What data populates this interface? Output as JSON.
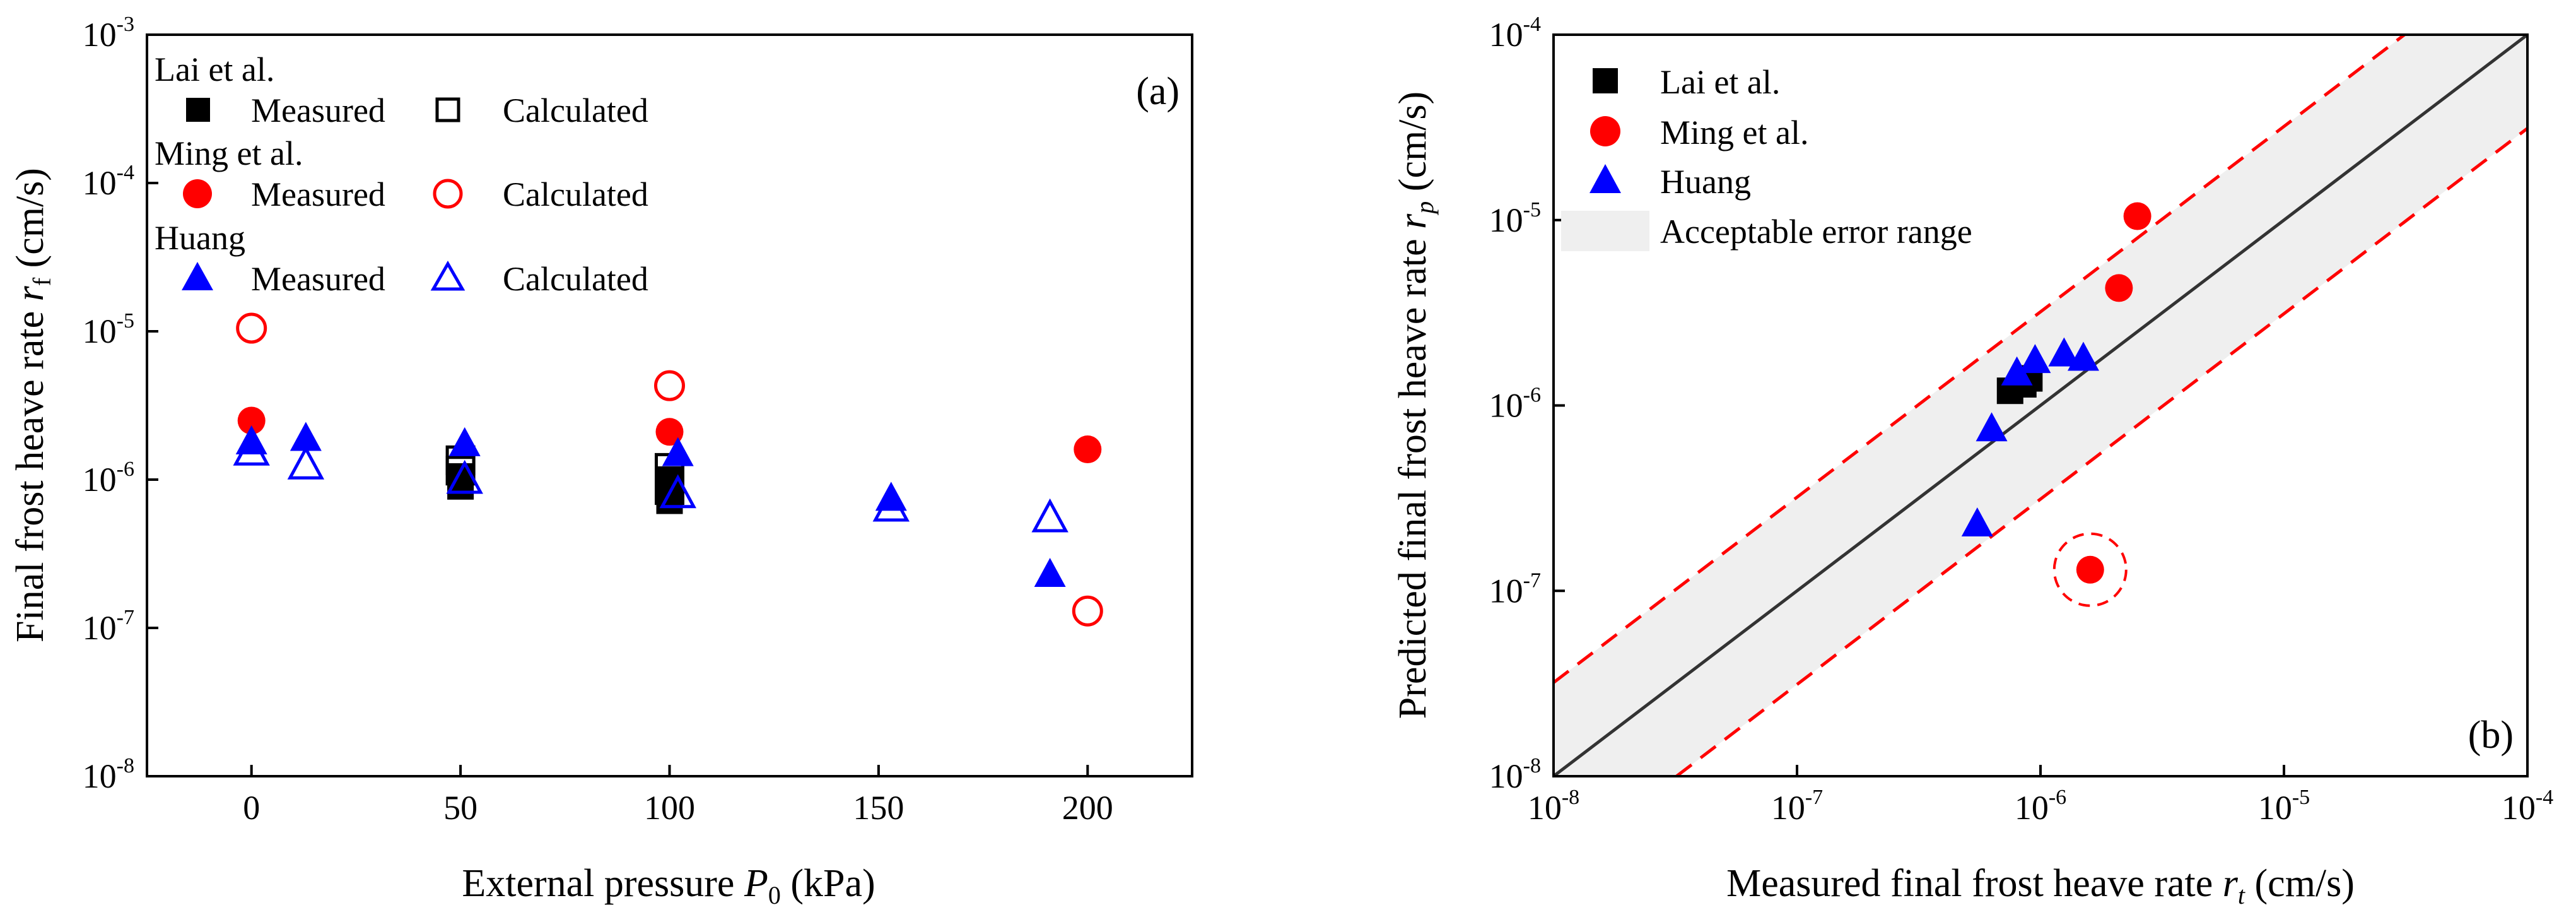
{
  "chart_data": [
    {
      "panel": "(a)",
      "type": "scatter",
      "xlabel": {
        "text": "External pressure ",
        "var": "P",
        "sub": "0",
        "unit": " (kPa)"
      },
      "ylabel": {
        "text": "Final frost heave rate ",
        "var": "r",
        "sub": "f",
        "unit": " (cm/s)"
      },
      "xlim": [
        -25,
        225
      ],
      "ylim_log10": [
        -8,
        -3
      ],
      "y_scale": "log",
      "xticks": [
        "0",
        "50",
        "100",
        "150",
        "200"
      ],
      "xtick_values": [
        0,
        50,
        100,
        150,
        200
      ],
      "yticks": [
        {
          "base": "10",
          "exp": "-8"
        },
        {
          "base": "10",
          "exp": "-7"
        },
        {
          "base": "10",
          "exp": "-6"
        },
        {
          "base": "10",
          "exp": "-5"
        },
        {
          "base": "10",
          "exp": "-4"
        },
        {
          "base": "10",
          "exp": "-3"
        }
      ],
      "legend_placement": "top-left",
      "legend_groups": [
        {
          "title": "Lai et al.",
          "measured_label": "Measured",
          "calculated_label": "Calculated"
        },
        {
          "title": "Ming et al.",
          "measured_label": "Measured",
          "calculated_label": "Calculated"
        },
        {
          "title": "Huang",
          "measured_label": "Measured",
          "calculated_label": "Calculated"
        }
      ],
      "series": [
        {
          "name": "Lai et al. Measured",
          "marker": "square-filled",
          "color": "#000000",
          "points": [
            [
              50,
              9e-07
            ],
            [
              50,
              1.05e-06
            ],
            [
              100,
              7.2e-07
            ],
            [
              100,
              1e-06
            ]
          ]
        },
        {
          "name": "Lai et al. Calculated",
          "marker": "square-open",
          "color": "#000000",
          "points": [
            [
              50,
              1.35e-06
            ],
            [
              50,
              1.15e-06
            ],
            [
              100,
              1.2e-06
            ],
            [
              100,
              8.5e-07
            ]
          ]
        },
        {
          "name": "Ming et al. Measured",
          "marker": "circle-filled",
          "color": "#ff0000",
          "points": [
            [
              0,
              2.5e-06
            ],
            [
              100,
              2.1e-06
            ],
            [
              200,
              1.6e-06
            ]
          ]
        },
        {
          "name": "Ming et al. Calculated",
          "marker": "circle-open",
          "color": "#ff0000",
          "points": [
            [
              0,
              1.05e-05
            ],
            [
              100,
              4.3e-06
            ],
            [
              200,
              1.3e-07
            ]
          ]
        },
        {
          "name": "Huang Measured",
          "marker": "triangle-filled",
          "color": "#0000ff",
          "points": [
            [
              0,
              1.8e-06
            ],
            [
              13,
              1.9e-06
            ],
            [
              51,
              1.75e-06
            ],
            [
              102,
              1.5e-06
            ],
            [
              153,
              7.5e-07
            ],
            [
              191,
              2.3e-07
            ]
          ]
        },
        {
          "name": "Huang Calculated",
          "marker": "triangle-open",
          "color": "#0000ff",
          "points": [
            [
              0,
              1.55e-06
            ],
            [
              13,
              1.25e-06
            ],
            [
              51,
              1e-06
            ],
            [
              102,
              8e-07
            ],
            [
              153,
              6.5e-07
            ],
            [
              191,
              5.5e-07
            ]
          ]
        }
      ]
    },
    {
      "panel": "(b)",
      "type": "scatter",
      "xlabel": {
        "text": "Measured final frost heave rate ",
        "var": "r",
        "sub": "t",
        "unit": " (cm/s)"
      },
      "ylabel": {
        "text": "Predicted final frost heave rate ",
        "var": "r",
        "sub": "p",
        "unit": " (cm/s)"
      },
      "xlim_log10": [
        -8,
        -4
      ],
      "ylim_log10": [
        -8,
        -4
      ],
      "x_scale": "log",
      "y_scale": "log",
      "xticks": [
        {
          "base": "10",
          "exp": "-8"
        },
        {
          "base": "10",
          "exp": "-7"
        },
        {
          "base": "10",
          "exp": "-6"
        },
        {
          "base": "10",
          "exp": "-5"
        },
        {
          "base": "10",
          "exp": "-4"
        }
      ],
      "yticks": [
        {
          "base": "10",
          "exp": "-8"
        },
        {
          "base": "10",
          "exp": "-7"
        },
        {
          "base": "10",
          "exp": "-6"
        },
        {
          "base": "10",
          "exp": "-5"
        },
        {
          "base": "10",
          "exp": "-4"
        }
      ],
      "reference_lines": [
        {
          "name": "y = x",
          "style": "solid",
          "color": "#333333",
          "factor": 1
        },
        {
          "name": "upper bound",
          "style": "dashed",
          "color": "#ff0000",
          "factor": 3.2
        },
        {
          "name": "lower bound",
          "style": "dashed",
          "color": "#ff0000",
          "factor": 0.3125
        }
      ],
      "error_band_color": "#efefef",
      "legend_placement": "top-left",
      "legend": [
        "Lai et al.",
        "Ming et al.",
        "Huang",
        "Acceptable error range"
      ],
      "highlighted_outlier": [
        1.6e-06,
        1.3e-07
      ],
      "series": [
        {
          "name": "Lai et al.",
          "marker": "square-filled",
          "color": "#000000",
          "points": [
            [
              7.5e-07,
              1.2e-06
            ],
            [
              9e-07,
              1.4e-06
            ],
            [
              8.5e-07,
              1.3e-06
            ]
          ]
        },
        {
          "name": "Ming et al.",
          "marker": "circle-filled",
          "color": "#ff0000",
          "points": [
            [
              2.5e-06,
              1.05e-05
            ],
            [
              2.1e-06,
              4.3e-06
            ],
            [
              1.6e-06,
              1.3e-07
            ]
          ]
        },
        {
          "name": "Huang",
          "marker": "triangle-filled",
          "color": "#0000ff",
          "points": [
            [
              6.3e-07,
              7.5e-07
            ],
            [
              5.5e-07,
              2.3e-07
            ],
            [
              8e-07,
              1.5e-06
            ],
            [
              9.5e-07,
              1.75e-06
            ],
            [
              1.25e-06,
              1.9e-06
            ],
            [
              1.5e-06,
              1.8e-06
            ]
          ]
        }
      ]
    }
  ]
}
